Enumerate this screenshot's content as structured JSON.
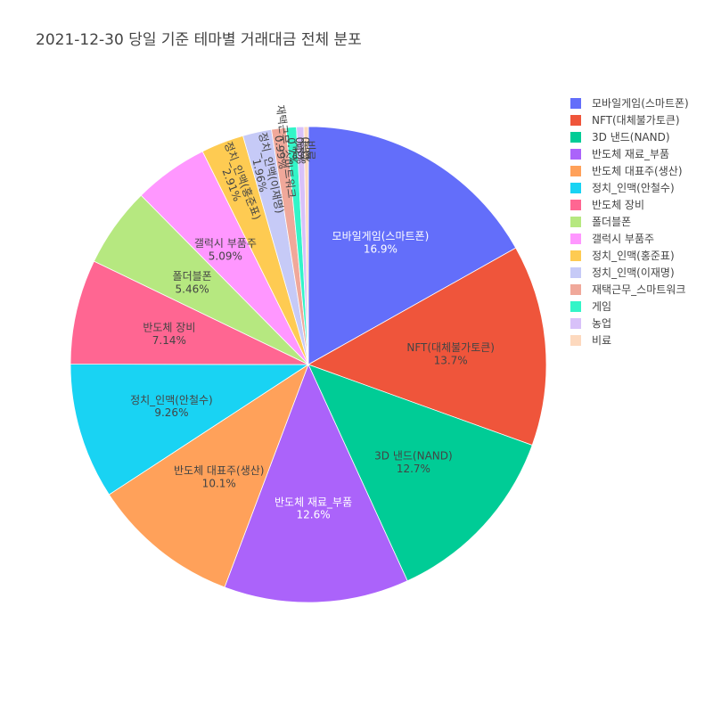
{
  "chart_data": {
    "type": "pie",
    "title": "2021-12-30 당일 기준 테마별 거래대금 전체 분포",
    "direction": "clockwise",
    "legend_position": "top-right",
    "slices": [
      {
        "label": "모바일게임(스마트폰)",
        "value": 16.9,
        "percent_text": "16.9%",
        "color": "#636efa",
        "text_color": "#ffffff"
      },
      {
        "label": "NFT(대체불가토큰)",
        "value": 13.7,
        "percent_text": "13.7%",
        "color": "#ef553b",
        "text_color": "#444444"
      },
      {
        "label": "3D 낸드(NAND)",
        "value": 12.7,
        "percent_text": "12.7%",
        "color": "#00cc96",
        "text_color": "#444444"
      },
      {
        "label": "반도체 재료_부품",
        "value": 12.6,
        "percent_text": "12.6%",
        "color": "#ab63fa",
        "text_color": "#ffffff"
      },
      {
        "label": "반도체 대표주(생산)",
        "value": 10.1,
        "percent_text": "10.1%",
        "color": "#ffa15a",
        "text_color": "#444444"
      },
      {
        "label": "정치_인맥(안철수)",
        "value": 9.26,
        "percent_text": "9.26%",
        "color": "#19d3f3",
        "text_color": "#444444"
      },
      {
        "label": "반도체 장비",
        "value": 7.14,
        "percent_text": "7.14%",
        "color": "#ff6692",
        "text_color": "#444444"
      },
      {
        "label": "폴더블폰",
        "value": 5.46,
        "percent_text": "5.46%",
        "color": "#b6e880",
        "text_color": "#444444"
      },
      {
        "label": "갤럭시 부품주",
        "value": 5.09,
        "percent_text": "5.09%",
        "color": "#ff97ff",
        "text_color": "#444444"
      },
      {
        "label": "정치_인맥(홍준표)",
        "value": 2.91,
        "percent_text": "2.91%",
        "color": "#fecb52",
        "text_color": "#444444"
      },
      {
        "label": "정치_인맥(이재명)",
        "value": 1.96,
        "percent_text": "1.96%",
        "color": "#c6caf7",
        "text_color": "#444444"
      },
      {
        "label": "재택근무_스마트워크",
        "value": 0.99,
        "percent_text": "0.99%",
        "color": "#f0a89a",
        "text_color": "#444444"
      },
      {
        "label": "게임",
        "value": 0.7,
        "percent_text": "0.7%",
        "color": "#33f5c8",
        "text_color": "#444444"
      },
      {
        "label": "농업",
        "value": 0.5,
        "percent_text": "0.5%",
        "color": "#d8c1f9",
        "text_color": "#444444"
      },
      {
        "label": "비료",
        "value": 0.3,
        "percent_text": "0.3%",
        "color": "#fdd9be",
        "text_color": "#444444"
      }
    ]
  }
}
